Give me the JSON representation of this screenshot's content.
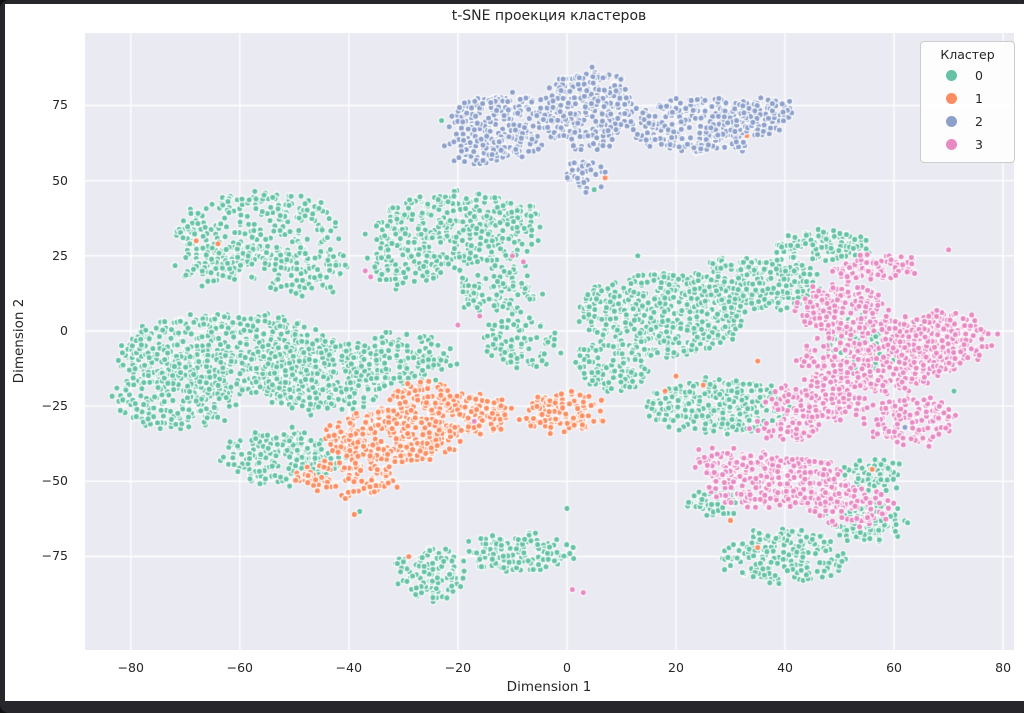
{
  "window": {
    "frame_color": "#27272b",
    "figure_bg": "#ffffff"
  },
  "chart_data": {
    "type": "scatter",
    "title": "t-SNE проекция кластеров",
    "xlabel": "Dimension 1",
    "ylabel": "Dimension 2",
    "xlim": [
      -88.4,
      82.0
    ],
    "ylim": [
      -106.1,
      99.1
    ],
    "xticks": [
      -80,
      -60,
      -40,
      -20,
      0,
      20,
      40,
      60,
      80
    ],
    "yticks": [
      75,
      50,
      25,
      0,
      -25,
      -50,
      -75
    ],
    "grid": true,
    "plot_bg": "#eaeaf2",
    "grid_color": "#ffffff",
    "text_color": "#262626",
    "marker": {
      "radius": 3.1,
      "edge_color": "#ffffff",
      "edge_width": 1.1
    },
    "legend": {
      "title": "Кластер",
      "position": "upper right",
      "entries": [
        {
          "label": "0",
          "color": "#66c2a5"
        },
        {
          "label": "1",
          "color": "#fc8d62"
        },
        {
          "label": "2",
          "color": "#8da0cb"
        },
        {
          "label": "3",
          "color": "#e78ac3"
        }
      ]
    },
    "seed": 7,
    "clusters": [
      {
        "label": "0",
        "color": "#66c2a5",
        "blobs": [
          [
            -57,
            34,
            15,
            12,
            260
          ],
          [
            -63,
            22,
            8,
            7,
            90
          ],
          [
            -48,
            20,
            8,
            8,
            100
          ],
          [
            -20,
            34,
            16,
            12,
            380
          ],
          [
            -30,
            22,
            7,
            7,
            90
          ],
          [
            -13,
            14,
            8,
            8,
            110
          ],
          [
            -62,
            -8,
            20,
            14,
            600
          ],
          [
            -72,
            -22,
            11,
            10,
            200
          ],
          [
            -45,
            -15,
            13,
            12,
            320
          ],
          [
            -52,
            -42,
            11,
            9,
            200
          ],
          [
            -30,
            -10,
            9,
            9,
            150
          ],
          [
            -8,
            -3,
            7,
            9,
            90
          ],
          [
            18,
            6,
            15,
            14,
            520
          ],
          [
            35,
            16,
            12,
            9,
            260
          ],
          [
            8,
            -12,
            7,
            8,
            110
          ],
          [
            28,
            -25,
            13,
            9,
            280
          ],
          [
            47,
            28,
            9,
            5,
            120
          ],
          [
            55,
            -4,
            7,
            9,
            130
          ],
          [
            56,
            -48,
            5,
            6,
            70
          ],
          [
            40,
            -75,
            11,
            9,
            220
          ],
          [
            55,
            -63,
            7,
            7,
            110
          ],
          [
            27,
            -57,
            5,
            4,
            50
          ],
          [
            -25,
            -81,
            6,
            8,
            110
          ],
          [
            -9,
            -74,
            10,
            6,
            140
          ]
        ],
        "outliers": [
          [
            -23,
            70
          ],
          [
            5,
            47
          ],
          [
            0,
            -59
          ],
          [
            -38,
            -60
          ],
          [
            13,
            25
          ],
          [
            71,
            -20
          ]
        ]
      },
      {
        "label": "1",
        "color": "#fc8d62",
        "blobs": [
          [
            -32,
            -35,
            12,
            9,
            300
          ],
          [
            -18,
            -28,
            8,
            7,
            130
          ],
          [
            -40,
            -49,
            9,
            6,
            100
          ],
          [
            -1,
            -27,
            8,
            7,
            120
          ],
          [
            -26,
            -22,
            6,
            5,
            70
          ]
        ],
        "outliers": [
          [
            -68,
            30
          ],
          [
            -64,
            29
          ],
          [
            33,
            65
          ],
          [
            7,
            51
          ],
          [
            20,
            -15
          ],
          [
            25,
            -18
          ],
          [
            35,
            -10
          ],
          [
            45,
            -15
          ],
          [
            51,
            -20
          ],
          [
            56,
            -46
          ],
          [
            30,
            -63
          ],
          [
            35,
            -72
          ],
          [
            18,
            -20
          ],
          [
            -39,
            -61
          ],
          [
            -29,
            -75
          ],
          [
            62,
            -12
          ]
        ]
      },
      {
        "label": "2",
        "color": "#8da0cb",
        "blobs": [
          [
            -12,
            68,
            9,
            11,
            280
          ],
          [
            4,
            74,
            8,
            13,
            300
          ],
          [
            24,
            68,
            12,
            9,
            300
          ],
          [
            3,
            52,
            3,
            5,
            45
          ],
          [
            35,
            72,
            6,
            6,
            90
          ],
          [
            -17,
            60,
            5,
            5,
            60
          ]
        ],
        "outliers": [
          [
            62,
            -32
          ]
        ]
      },
      {
        "label": "3",
        "color": "#e78ac3",
        "blobs": [
          [
            57,
            -8,
            14,
            12,
            420
          ],
          [
            68,
            -3,
            9,
            10,
            220
          ],
          [
            46,
            -23,
            9,
            7,
            150
          ],
          [
            50,
            8,
            8,
            8,
            150
          ],
          [
            57,
            21,
            8,
            4,
            80
          ],
          [
            38,
            -50,
            12,
            9,
            280
          ],
          [
            52,
            -58,
            7,
            7,
            110
          ],
          [
            28,
            -43,
            5,
            4,
            45
          ],
          [
            40,
            -32,
            6,
            4,
            50
          ],
          [
            63,
            -30,
            8,
            8,
            130
          ]
        ],
        "outliers": [
          [
            -10,
            25
          ],
          [
            -8,
            23
          ],
          [
            -37,
            20
          ],
          [
            -36,
            18
          ],
          [
            -20,
            2
          ],
          [
            -16,
            5
          ],
          [
            -17,
            -30
          ],
          [
            1,
            -86
          ],
          [
            3,
            -87
          ],
          [
            70,
            27
          ],
          [
            79,
            -1
          ]
        ]
      }
    ]
  }
}
